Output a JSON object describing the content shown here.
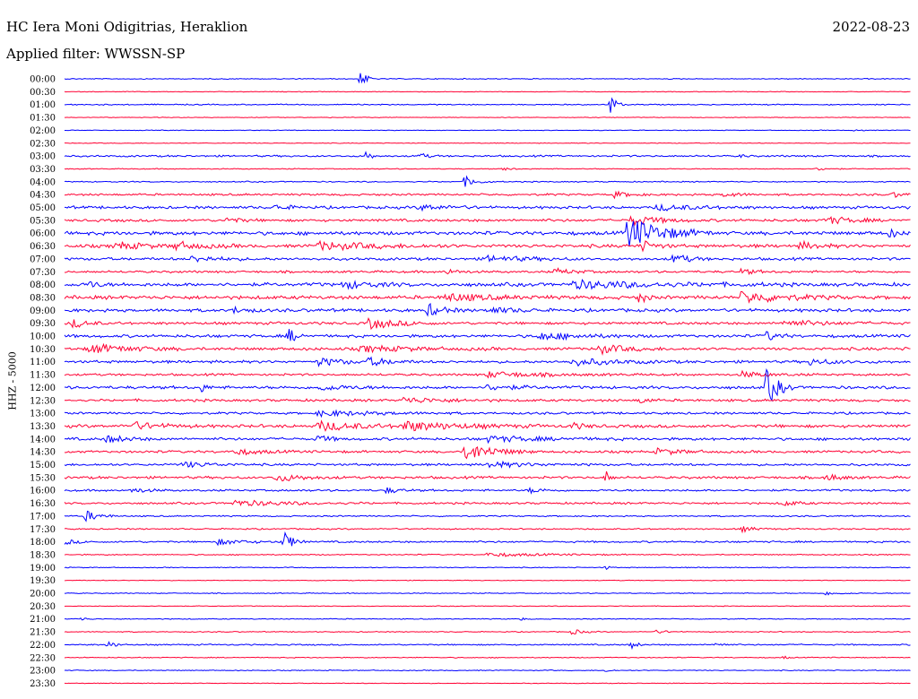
{
  "header": {
    "station": "HC Iera Moni Odigitrias, Heraklion",
    "date": "2022-08-23",
    "filter": "Applied filter: WWSSN-SP"
  },
  "colors": {
    "even_row": "#0000ff",
    "odd_row": "#ff0033"
  },
  "chart_data": {
    "type": "line",
    "ylabel": "HHZ - 5000",
    "rows": [
      {
        "time": "00:00",
        "events": [
          [
            0.35,
            9,
            5
          ]
        ],
        "noise": 0.4
      },
      {
        "time": "00:30",
        "events": [],
        "noise": 0.3
      },
      {
        "time": "01:00",
        "events": [
          [
            0.645,
            12,
            4
          ]
        ],
        "noise": 0.5
      },
      {
        "time": "01:30",
        "events": [],
        "noise": 0.3
      },
      {
        "time": "02:00",
        "events": [
          [
            0.935,
            2,
            4
          ]
        ],
        "noise": 0.3
      },
      {
        "time": "02:30",
        "events": [],
        "noise": 0.3
      },
      {
        "time": "03:00",
        "events": [
          [
            0.357,
            7,
            3
          ],
          [
            0.42,
            3,
            6
          ],
          [
            0.8,
            2,
            3
          ]
        ],
        "noise": 0.8
      },
      {
        "time": "03:30",
        "events": [
          [
            0.52,
            3,
            4
          ],
          [
            0.89,
            2,
            8
          ]
        ],
        "noise": 0.4
      },
      {
        "time": "04:00",
        "events": [
          [
            0.473,
            6,
            8
          ]
        ],
        "noise": 0.5
      },
      {
        "time": "04:30",
        "events": [
          [
            0.65,
            3,
            12
          ],
          [
            0.78,
            3,
            10
          ],
          [
            0.98,
            3,
            6
          ]
        ],
        "noise": 0.9
      },
      {
        "time": "05:00",
        "events": [
          [
            0.25,
            3,
            10
          ],
          [
            0.42,
            3,
            20
          ],
          [
            0.7,
            3,
            30
          ]
        ],
        "noise": 1.2
      },
      {
        "time": "05:30",
        "events": [
          [
            0.19,
            3,
            10
          ],
          [
            0.67,
            5,
            20
          ],
          [
            0.9,
            4,
            20
          ]
        ],
        "noise": 1.2
      },
      {
        "time": "06:00",
        "events": [
          [
            0.665,
            18,
            24
          ],
          [
            0.975,
            5,
            5
          ]
        ],
        "noise": 1.6
      },
      {
        "time": "06:30",
        "events": [
          [
            0.06,
            4,
            20
          ],
          [
            0.13,
            4,
            20
          ],
          [
            0.3,
            4,
            40
          ],
          [
            0.68,
            6,
            10
          ],
          [
            0.87,
            4,
            12
          ]
        ],
        "noise": 1.5
      },
      {
        "time": "07:00",
        "events": [
          [
            0.72,
            6,
            10
          ],
          [
            0.15,
            3,
            20
          ],
          [
            0.5,
            3,
            30
          ]
        ],
        "noise": 1.2
      },
      {
        "time": "07:30",
        "events": [
          [
            0.45,
            3,
            10
          ],
          [
            0.58,
            3,
            15
          ],
          [
            0.8,
            3,
            10
          ]
        ],
        "noise": 1.0
      },
      {
        "time": "08:00",
        "events": [
          [
            0.03,
            4,
            6
          ],
          [
            0.33,
            4,
            20
          ],
          [
            0.6,
            4,
            60
          ]
        ],
        "noise": 1.6
      },
      {
        "time": "08:30",
        "events": [
          [
            0.45,
            4,
            30
          ],
          [
            0.68,
            8,
            4
          ],
          [
            0.8,
            6,
            30
          ]
        ],
        "noise": 1.6
      },
      {
        "time": "09:00",
        "events": [
          [
            0.43,
            7,
            10
          ],
          [
            0.2,
            3,
            10
          ],
          [
            0.5,
            3,
            20
          ]
        ],
        "noise": 1.4
      },
      {
        "time": "09:30",
        "events": [
          [
            0.01,
            5,
            10
          ],
          [
            0.36,
            6,
            20
          ],
          [
            0.85,
            3,
            30
          ]
        ],
        "noise": 1.2
      },
      {
        "time": "10:00",
        "events": [
          [
            0.265,
            9,
            5
          ],
          [
            0.56,
            4,
            30
          ],
          [
            0.83,
            5,
            8
          ]
        ],
        "noise": 1.3
      },
      {
        "time": "10:30",
        "events": [
          [
            0.03,
            5,
            30
          ],
          [
            0.63,
            5,
            20
          ],
          [
            0.35,
            3,
            40
          ]
        ],
        "noise": 1.3
      },
      {
        "time": "11:00",
        "events": [
          [
            0.3,
            4,
            20
          ],
          [
            0.36,
            4,
            15
          ],
          [
            0.6,
            4,
            30
          ],
          [
            0.88,
            3,
            20
          ]
        ],
        "noise": 1.2
      },
      {
        "time": "11:30",
        "events": [
          [
            0.5,
            3,
            40
          ],
          [
            0.8,
            3,
            20
          ]
        ],
        "noise": 1.0
      },
      {
        "time": "12:00",
        "events": [
          [
            0.83,
            22,
            8
          ],
          [
            0.16,
            6,
            4
          ],
          [
            0.3,
            3,
            20
          ],
          [
            0.5,
            3,
            20
          ]
        ],
        "noise": 1.3
      },
      {
        "time": "12:30",
        "events": [
          [
            0.4,
            3,
            30
          ],
          [
            0.68,
            4,
            6
          ]
        ],
        "noise": 1.1
      },
      {
        "time": "13:00",
        "events": [
          [
            0.3,
            3,
            40
          ]
        ],
        "noise": 1.0
      },
      {
        "time": "13:30",
        "events": [
          [
            0.08,
            4,
            20
          ],
          [
            0.3,
            5,
            30
          ],
          [
            0.4,
            5,
            40
          ],
          [
            0.6,
            3,
            10
          ]
        ],
        "noise": 1.4
      },
      {
        "time": "14:00",
        "events": [
          [
            0.05,
            4,
            15
          ],
          [
            0.3,
            4,
            8
          ],
          [
            0.5,
            3,
            40
          ]
        ],
        "noise": 1.2
      },
      {
        "time": "14:30",
        "events": [
          [
            0.474,
            10,
            20
          ],
          [
            0.2,
            3,
            20
          ],
          [
            0.7,
            3,
            20
          ]
        ],
        "noise": 1.1
      },
      {
        "time": "15:00",
        "events": [
          [
            0.14,
            3,
            20
          ],
          [
            0.5,
            3,
            30
          ]
        ],
        "noise": 1.0
      },
      {
        "time": "15:30",
        "events": [
          [
            0.25,
            4,
            20
          ],
          [
            0.64,
            7,
            3
          ],
          [
            0.9,
            4,
            10
          ]
        ],
        "noise": 1.1
      },
      {
        "time": "16:00",
        "events": [
          [
            0.08,
            3,
            10
          ],
          [
            0.38,
            3,
            10
          ],
          [
            0.55,
            3,
            8
          ]
        ],
        "noise": 0.9
      },
      {
        "time": "16:30",
        "events": [
          [
            0.2,
            3,
            40
          ],
          [
            0.85,
            3,
            10
          ]
        ],
        "noise": 0.9
      },
      {
        "time": "17:00",
        "events": [
          [
            0.025,
            6,
            10
          ]
        ],
        "noise": 0.6
      },
      {
        "time": "17:30",
        "events": [
          [
            0.8,
            3,
            10
          ]
        ],
        "noise": 0.6
      },
      {
        "time": "18:00",
        "events": [
          [
            0.26,
            12,
            6
          ],
          [
            0.18,
            3,
            20
          ],
          [
            0.0,
            3,
            8
          ]
        ],
        "noise": 0.8
      },
      {
        "time": "18:30",
        "events": [
          [
            0.5,
            2,
            40
          ]
        ],
        "noise": 0.5
      },
      {
        "time": "19:00",
        "events": [
          [
            0.64,
            3,
            2
          ]
        ],
        "noise": 0.4
      },
      {
        "time": "19:30",
        "events": [],
        "noise": 0.3
      },
      {
        "time": "20:00",
        "events": [
          [
            0.9,
            2,
            10
          ]
        ],
        "noise": 0.4
      },
      {
        "time": "20:30",
        "events": [],
        "noise": 0.3
      },
      {
        "time": "21:00",
        "events": [
          [
            0.02,
            2,
            4
          ],
          [
            0.54,
            2,
            2
          ]
        ],
        "noise": 0.4
      },
      {
        "time": "21:30",
        "events": [
          [
            0.6,
            3,
            8
          ],
          [
            0.7,
            2,
            8
          ]
        ],
        "noise": 0.4
      },
      {
        "time": "22:00",
        "events": [
          [
            0.67,
            5,
            4
          ],
          [
            0.05,
            4,
            6
          ],
          [
            0.77,
            3,
            5
          ]
        ],
        "noise": 0.6
      },
      {
        "time": "22:30",
        "events": [
          [
            0.85,
            2,
            3
          ]
        ],
        "noise": 0.4
      },
      {
        "time": "23:00",
        "events": [
          [
            0.64,
            2,
            3
          ]
        ],
        "noise": 0.4
      },
      {
        "time": "23:30",
        "events": [],
        "noise": 0.3
      }
    ]
  }
}
